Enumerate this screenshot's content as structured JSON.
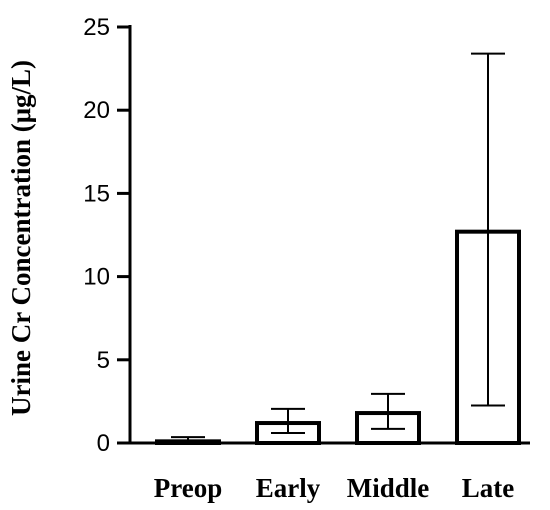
{
  "chart_data": {
    "type": "bar",
    "categories": [
      "Preop",
      "Early",
      "Middle",
      "Late"
    ],
    "values": [
      0.1,
      1.2,
      1.8,
      12.7
    ],
    "error_upper": [
      0.35,
      2.05,
      2.95,
      23.4
    ],
    "error_lower": [
      0.05,
      0.6,
      0.85,
      2.25
    ],
    "title": "",
    "xlabel": "",
    "ylabel": "Urine Cr Concentration (μg/L)",
    "ylim": [
      0,
      25
    ],
    "yticks": [
      0,
      5,
      10,
      15,
      20,
      25
    ],
    "grid": false,
    "legend": "none",
    "bar_fill": "#ffffff",
    "bar_stroke": "#000000"
  }
}
